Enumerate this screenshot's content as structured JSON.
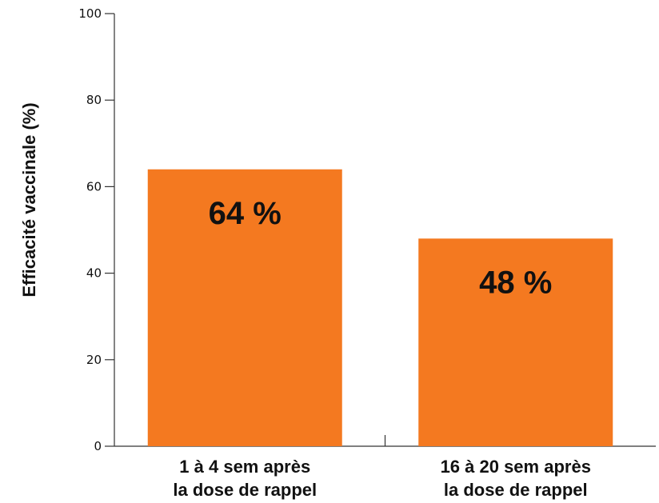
{
  "chart_data": {
    "type": "bar",
    "categories": [
      [
        "1 à 4 sem après",
        "la dose de rappel"
      ],
      [
        "16 à 20 sem après",
        "la dose de rappel"
      ]
    ],
    "values": [
      64,
      48
    ],
    "data_labels": [
      "64 %",
      "48 %"
    ],
    "ylabel": "Efficacité vaccinale (%)",
    "xlabel": "",
    "ylim": [
      0,
      100
    ],
    "yticks": [
      0,
      20,
      40,
      60,
      80,
      100
    ],
    "grid": false,
    "bar_color": "#f47920"
  }
}
